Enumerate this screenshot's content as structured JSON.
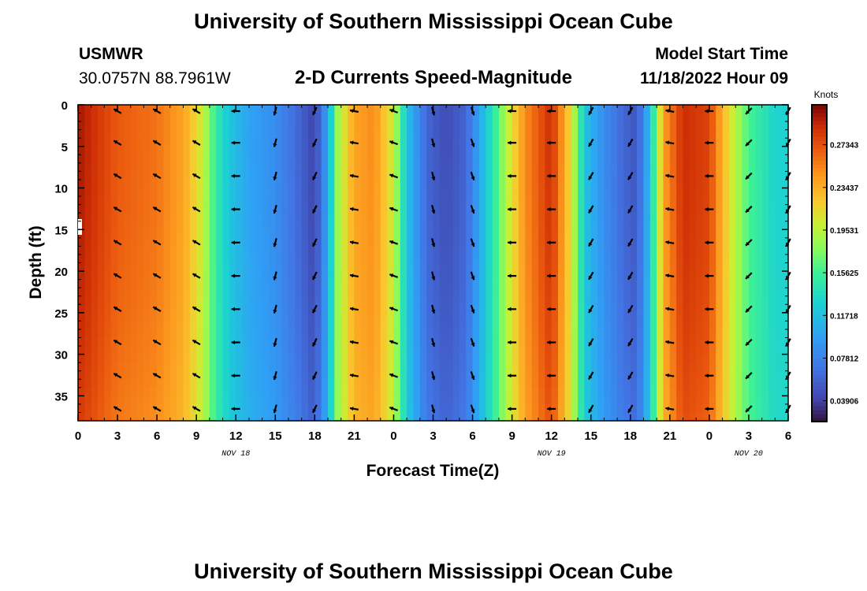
{
  "header": {
    "title": "University of Southern Mississippi Ocean Cube",
    "station": "USMWR",
    "coords": "30.0757N  88.7961W",
    "plot_name": "2-D Currents Speed-Magnitude",
    "model_label": "Model Start Time",
    "model_time": "11/18/2022 Hour 09"
  },
  "footer": {
    "title": "University of Southern Mississippi Ocean Cube"
  },
  "chart_data": {
    "type": "heatmap",
    "xlabel": "Forecast Time(Z)",
    "ylabel": "Depth (ft)",
    "x_range_hours": [
      0,
      54
    ],
    "y_range": [
      0,
      38
    ],
    "x_ticks": [
      {
        "h": 0,
        "label": "0"
      },
      {
        "h": 3,
        "label": "3"
      },
      {
        "h": 6,
        "label": "6"
      },
      {
        "h": 9,
        "label": "9"
      },
      {
        "h": 12,
        "label": "12"
      },
      {
        "h": 15,
        "label": "15"
      },
      {
        "h": 18,
        "label": "18"
      },
      {
        "h": 21,
        "label": "21"
      },
      {
        "h": 24,
        "label": "0"
      },
      {
        "h": 27,
        "label": "3"
      },
      {
        "h": 30,
        "label": "6"
      },
      {
        "h": 33,
        "label": "9"
      },
      {
        "h": 36,
        "label": "12"
      },
      {
        "h": 39,
        "label": "15"
      },
      {
        "h": 42,
        "label": "18"
      },
      {
        "h": 45,
        "label": "21"
      },
      {
        "h": 48,
        "label": "0"
      },
      {
        "h": 51,
        "label": "3"
      },
      {
        "h": 54,
        "label": "6"
      }
    ],
    "date_labels": [
      {
        "h": 12,
        "label": "NOV 18"
      },
      {
        "h": 36,
        "label": "NOV 19"
      },
      {
        "h": 51,
        "label": "NOV 20"
      }
    ],
    "y_ticks": [
      0,
      5,
      10,
      15,
      20,
      25,
      30,
      35
    ],
    "y_tick_labels": [
      "0",
      "5",
      "10",
      "15",
      "20",
      "25",
      "30",
      "35"
    ],
    "colorbar": {
      "title": "Knots",
      "range": [
        0.02,
        0.31
      ],
      "ticks": [
        0.27343,
        0.23437,
        0.19531,
        0.15625,
        0.11718,
        0.07812,
        0.03906
      ],
      "tick_labels": [
        "0.27343",
        "0.23437",
        "0.19531",
        "0.15625",
        "0.11718",
        "0.07812",
        "0.03906"
      ]
    },
    "speed_profile_knots": [
      {
        "h": 0,
        "v": 0.3
      },
      {
        "h": 3,
        "v": 0.27
      },
      {
        "h": 6,
        "v": 0.26
      },
      {
        "h": 8,
        "v": 0.24
      },
      {
        "h": 9.5,
        "v": 0.2
      },
      {
        "h": 10.5,
        "v": 0.15
      },
      {
        "h": 11.5,
        "v": 0.12
      },
      {
        "h": 13,
        "v": 0.1
      },
      {
        "h": 15,
        "v": 0.085
      },
      {
        "h": 16.5,
        "v": 0.065
      },
      {
        "h": 18,
        "v": 0.04
      },
      {
        "h": 19,
        "v": 0.1
      },
      {
        "h": 19.8,
        "v": 0.19
      },
      {
        "h": 21,
        "v": 0.24
      },
      {
        "h": 22.5,
        "v": 0.25
      },
      {
        "h": 24,
        "v": 0.2
      },
      {
        "h": 25,
        "v": 0.12
      },
      {
        "h": 26.5,
        "v": 0.06
      },
      {
        "h": 28,
        "v": 0.045
      },
      {
        "h": 29.5,
        "v": 0.06
      },
      {
        "h": 31,
        "v": 0.12
      },
      {
        "h": 32.5,
        "v": 0.19
      },
      {
        "h": 34,
        "v": 0.25
      },
      {
        "h": 36,
        "v": 0.29
      },
      {
        "h": 37.5,
        "v": 0.21
      },
      {
        "h": 38.5,
        "v": 0.12
      },
      {
        "h": 40,
        "v": 0.085
      },
      {
        "h": 41.5,
        "v": 0.06
      },
      {
        "h": 42.5,
        "v": 0.05
      },
      {
        "h": 43.5,
        "v": 0.12
      },
      {
        "h": 44.5,
        "v": 0.24
      },
      {
        "h": 46,
        "v": 0.29
      },
      {
        "h": 48,
        "v": 0.28
      },
      {
        "h": 49.5,
        "v": 0.21
      },
      {
        "h": 51,
        "v": 0.16
      },
      {
        "h": 53,
        "v": 0.13
      },
      {
        "h": 54,
        "v": 0.13
      }
    ],
    "vectors": {
      "times_hours": [
        3,
        6,
        9,
        12,
        15,
        18,
        21,
        24,
        27,
        30,
        33,
        36,
        39,
        42,
        45,
        48,
        51,
        54
      ],
      "depths": [
        0,
        4,
        8,
        12,
        16,
        20,
        24,
        28,
        32,
        36
      ],
      "direction_deg": [
        300,
        300,
        300,
        270,
        195,
        205,
        280,
        290,
        165,
        160,
        270,
        270,
        210,
        210,
        280,
        270,
        225,
        210
      ]
    }
  }
}
